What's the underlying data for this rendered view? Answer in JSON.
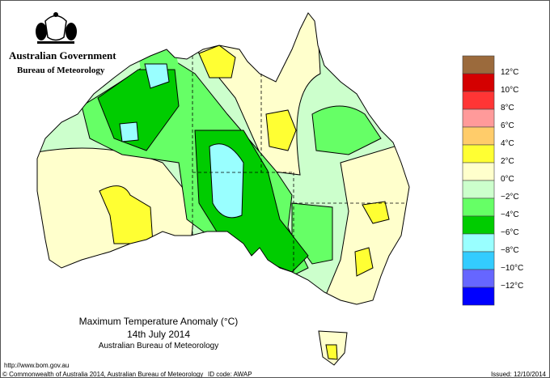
{
  "header": {
    "org_line1": "Australian Government",
    "org_line2": "Bureau of Meteorology"
  },
  "map": {
    "title": "Maximum Temperature Anomaly (°C)",
    "date": "14th July 2014",
    "source": "Australian Bureau of Meteorology"
  },
  "legend": {
    "colors": [
      "#9b6a3c",
      "#d40000",
      "#ff3535",
      "#ff9a9a",
      "#ffcc6a",
      "#ffff33",
      "#ffffcc",
      "#ccffcc",
      "#66ff66",
      "#00cc00",
      "#99ffff",
      "#33ccff",
      "#6666ff",
      "#0000ff"
    ],
    "labels": [
      "12°C",
      "10°C",
      "8°C",
      "6°C",
      "4°C",
      "2°C",
      "0°C",
      "−2°C",
      "−4°C",
      "−6°C",
      "−8°C",
      "−10°C",
      "−12°C"
    ]
  },
  "footer": {
    "url": "http://www.bom.gov.au",
    "copyright": "© Commonwealth of Australia 2014, Australian Bureau of Meteorology",
    "id_code": "ID code: AWAP",
    "issued": "Issued: 12/10/2014"
  }
}
